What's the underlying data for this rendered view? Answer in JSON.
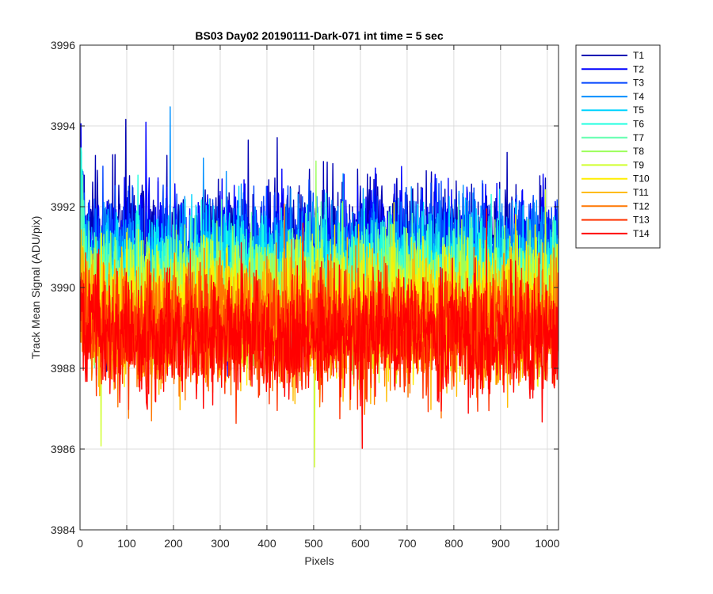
{
  "chart_data": {
    "type": "line",
    "title": "BS03 Day02 20190111-Dark-071 int time = 5 sec",
    "xlabel": "Pixels",
    "ylabel": "Track Mean Signal (ADU/pix)",
    "xlim": [
      0,
      1024
    ],
    "ylim": [
      3984,
      3996
    ],
    "xticks": [
      0,
      100,
      200,
      300,
      400,
      500,
      600,
      700,
      800,
      900,
      1000
    ],
    "yticks": [
      3984,
      3986,
      3988,
      3990,
      3992,
      3994,
      3996
    ],
    "grid": true,
    "legend_position": "outside-right",
    "n_points": 1024,
    "series": [
      {
        "name": "T1",
        "color": "#0000b3",
        "mean": 3991.2,
        "noise": 0.75
      },
      {
        "name": "T2",
        "color": "#0000ff",
        "mean": 3991.0,
        "noise": 0.75
      },
      {
        "name": "T3",
        "color": "#0044ff",
        "mean": 3990.8,
        "noise": 0.75
      },
      {
        "name": "T4",
        "color": "#0090ff",
        "mean": 3990.6,
        "noise": 0.75
      },
      {
        "name": "T5",
        "color": "#00d4ff",
        "mean": 3990.4,
        "noise": 0.75
      },
      {
        "name": "T6",
        "color": "#1fffe0",
        "mean": 3990.2,
        "noise": 0.75
      },
      {
        "name": "T7",
        "color": "#66ffb0",
        "mean": 3990.0,
        "noise": 0.75
      },
      {
        "name": "T8",
        "color": "#9cff5c",
        "mean": 3989.8,
        "noise": 0.75
      },
      {
        "name": "T9",
        "color": "#d0ff2e",
        "mean": 3989.6,
        "noise": 0.75
      },
      {
        "name": "T10",
        "color": "#ffee00",
        "mean": 3989.4,
        "noise": 0.75
      },
      {
        "name": "T11",
        "color": "#ffbb00",
        "mean": 3989.2,
        "noise": 0.75
      },
      {
        "name": "T12",
        "color": "#ff7700",
        "mean": 3989.0,
        "noise": 0.75
      },
      {
        "name": "T13",
        "color": "#ff3300",
        "mean": 3988.9,
        "noise": 0.75
      },
      {
        "name": "T14",
        "color": "#ff0000",
        "mean": 3988.8,
        "noise": 0.75
      }
    ]
  }
}
